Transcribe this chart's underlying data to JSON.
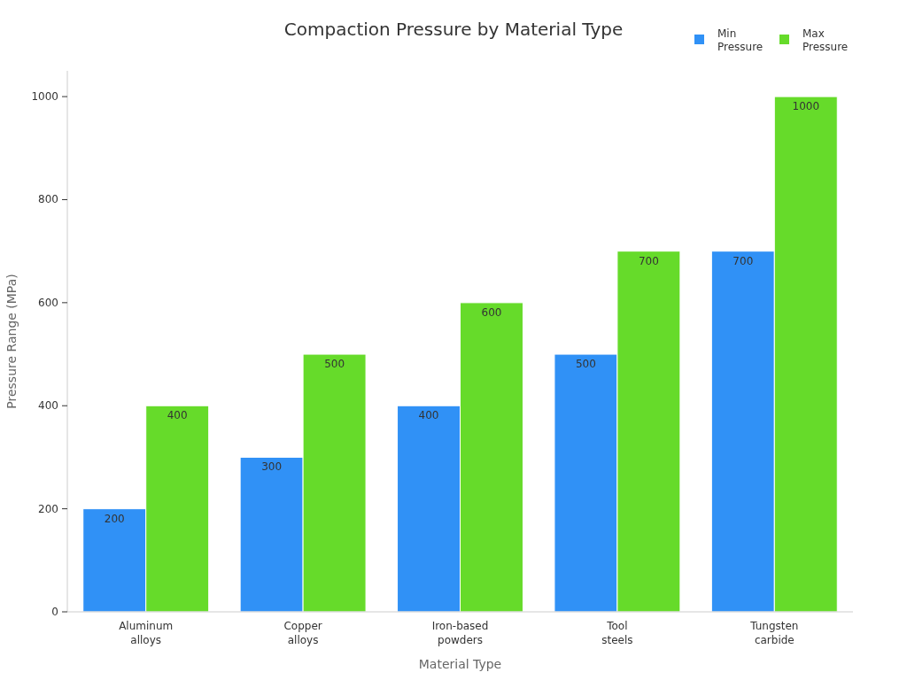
{
  "chart_data": {
    "type": "bar",
    "title": "Compaction Pressure by Material Type",
    "xlabel": "Material Type",
    "ylabel": "Pressure Range (MPa)",
    "categories": [
      "Aluminum alloys",
      "Copper alloys",
      "Iron-based powders",
      "Tool steels",
      "Tungsten carbide"
    ],
    "series": [
      {
        "name": "Min Pressure",
        "color": "#3091f6",
        "values": [
          200,
          300,
          400,
          500,
          700
        ]
      },
      {
        "name": "Max Pressure",
        "color": "#66db2a",
        "values": [
          400,
          500,
          600,
          700,
          1000
        ]
      }
    ],
    "ylim": [
      0,
      1050
    ],
    "yticks": [
      0,
      200,
      400,
      600,
      800,
      1000
    ],
    "data_labels": true,
    "legend": "top right",
    "grid": false
  }
}
